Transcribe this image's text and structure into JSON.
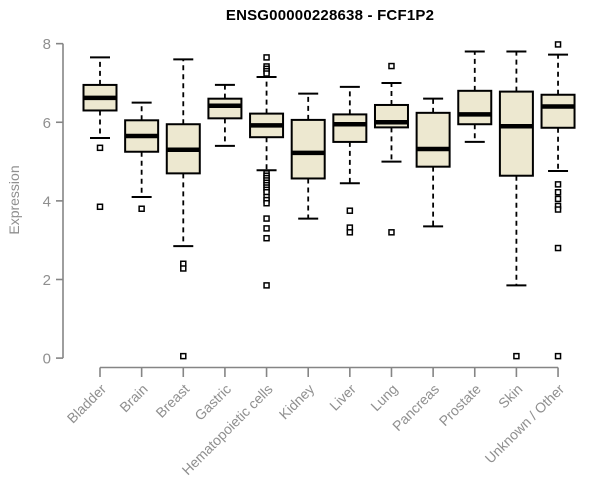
{
  "chart_data": {
    "type": "box",
    "title": "ENSG00000228638 - FCF1P2",
    "ylabel": "Expression",
    "xlabel": "",
    "ylim": [
      0,
      8
    ],
    "yticks": [
      0,
      2,
      4,
      6,
      8
    ],
    "grid": false,
    "legend": "none",
    "categories": [
      "Bladder",
      "Brain",
      "Breast",
      "Gastric",
      "Hematopoietic cells",
      "Kidney",
      "Liver",
      "Lung",
      "Pancreas",
      "Prostate",
      "Skin",
      "Unknown / Other"
    ],
    "series": [
      {
        "category": "Bladder",
        "low": 5.6,
        "q1": 6.3,
        "median": 6.62,
        "q3": 6.95,
        "high": 7.65,
        "outliers": [
          5.35,
          3.85
        ]
      },
      {
        "category": "Brain",
        "low": 4.1,
        "q1": 5.25,
        "median": 5.65,
        "q3": 6.05,
        "high": 6.5,
        "outliers": [
          3.8
        ]
      },
      {
        "category": "Breast",
        "low": 2.85,
        "q1": 4.7,
        "median": 5.3,
        "q3": 5.95,
        "high": 7.6,
        "outliers": [
          2.4,
          2.28,
          0.05
        ]
      },
      {
        "category": "Gastric",
        "low": 5.4,
        "q1": 6.1,
        "median": 6.42,
        "q3": 6.6,
        "high": 6.95,
        "outliers": []
      },
      {
        "category": "Hematopoietic cells",
        "low": 4.78,
        "q1": 5.62,
        "median": 5.92,
        "q3": 6.22,
        "high": 7.15,
        "outliers": [
          7.65,
          7.42,
          7.36,
          7.3,
          7.24,
          4.7,
          4.64,
          4.58,
          4.52,
          4.46,
          4.4,
          4.34,
          4.28,
          4.22,
          4.1,
          4.02,
          3.94,
          3.55,
          3.3,
          3.05,
          1.85
        ]
      },
      {
        "category": "Kidney",
        "low": 3.55,
        "q1": 4.57,
        "median": 5.22,
        "q3": 6.06,
        "high": 6.73,
        "outliers": []
      },
      {
        "category": "Liver",
        "low": 4.45,
        "q1": 5.5,
        "median": 5.95,
        "q3": 6.2,
        "high": 6.9,
        "outliers": [
          3.75,
          3.32,
          3.2
        ]
      },
      {
        "category": "Lung",
        "low": 5.0,
        "q1": 5.87,
        "median": 6.0,
        "q3": 6.44,
        "high": 7.0,
        "outliers": [
          7.43,
          3.2
        ]
      },
      {
        "category": "Pancreas",
        "low": 3.35,
        "q1": 4.87,
        "median": 5.32,
        "q3": 6.24,
        "high": 6.6,
        "outliers": []
      },
      {
        "category": "Prostate",
        "low": 5.5,
        "q1": 5.95,
        "median": 6.2,
        "q3": 6.8,
        "high": 7.8,
        "outliers": []
      },
      {
        "category": "Skin",
        "low": 1.85,
        "q1": 4.64,
        "median": 5.9,
        "q3": 6.78,
        "high": 7.8,
        "outliers": [
          0.05
        ]
      },
      {
        "category": "Unknown / Other",
        "low": 4.76,
        "q1": 5.86,
        "median": 6.4,
        "q3": 6.7,
        "high": 7.72,
        "outliers": [
          7.98,
          4.42,
          4.22,
          4.05,
          3.87,
          3.78,
          2.8,
          0.05
        ]
      }
    ],
    "colors": {
      "box_fill": "#EDE8D0",
      "box_border": "#000000",
      "median": "#000000",
      "whisker": "#000000",
      "outlier_fill": "#ffffff",
      "axis_line": "#858585",
      "tick_label": "#8f8f8f",
      "title": "#000000",
      "background": "#ffffff"
    }
  }
}
